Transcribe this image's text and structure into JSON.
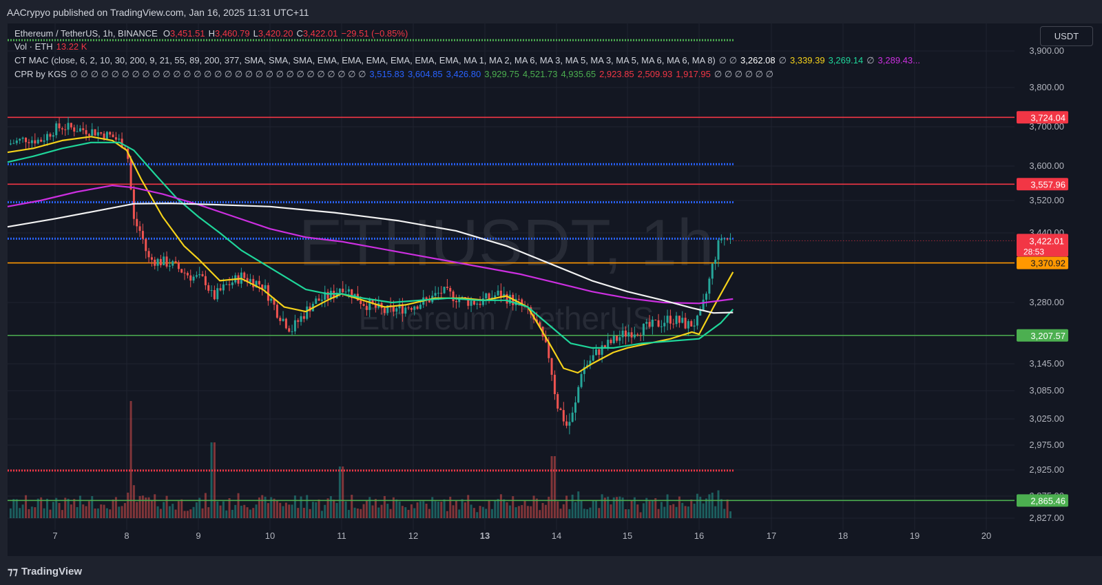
{
  "header": {
    "publisher": "AACrypyo published on TradingView.com, Jan 16, 2025 11:31 UTC+11"
  },
  "legend": {
    "main": {
      "symbol": "Ethereum / TetherUS, 1h, BINANCE",
      "o_label": "O",
      "o": "3,451.51",
      "h_label": "H",
      "h": "3,460.79",
      "l_label": "L",
      "l": "3,420.20",
      "c_label": "C",
      "c": "3,422.01",
      "change": "−29.51 (−0.85%)"
    },
    "vol": {
      "label": "Vol · ETH",
      "value": "13.22 K"
    },
    "mac": {
      "label": "CT MAC (close, 6, 2, 10, 30, 200, 9, 21, 55, 89, 200, 377, SMA, SMA, SMA, EMA, EMA, EMA, EMA, EMA, EMA, MA 1, MA 2, MA 6, MA 3, MA 5, MA 3, MA 5, MA 6, MA 6, MA 8)",
      "na": "∅ ∅",
      "v1": "3,262.08",
      "na2": "∅",
      "v2": "3,339.39",
      "v3": "3,269.14",
      "na3": "∅",
      "v4": "3,289.43..."
    },
    "cpr": {
      "label": "CPR by KGS",
      "na": "∅ ∅ ∅ ∅ ∅ ∅ ∅ ∅ ∅ ∅ ∅ ∅ ∅ ∅ ∅ ∅ ∅ ∅ ∅ ∅ ∅ ∅ ∅ ∅ ∅ ∅ ∅ ∅ ∅",
      "v1": "3,515.83",
      "v2": "3,604.85",
      "v3": "3,426.80",
      "v4": "3,929.75",
      "v5": "4,521.73",
      "v6": "4,935.65",
      "v7": "2,923.85",
      "v8": "2,509.93",
      "v9": "1,917.95",
      "na_end": "∅ ∅ ∅ ∅ ∅ ∅"
    }
  },
  "currency": "USDT",
  "watermark": {
    "symbol": "ETHUSDT, 1h",
    "name": "Ethereum / TetherUS"
  },
  "countdown": "28:53",
  "footer": {
    "logo": "TradingView"
  },
  "colors": {
    "bg": "#131722",
    "up": "#26a69a",
    "down": "#ef5350",
    "yellow": "#f5d21a",
    "teal": "#1fd69a",
    "magenta": "#cc2fe0",
    "white": "#f2f2f2",
    "red_level": "#f23645",
    "orange_level": "#ff9800",
    "green_level": "#4caf50",
    "blue_dotted": "#2962ff"
  },
  "chart_data": {
    "type": "candlestick",
    "timeframe": "1h",
    "price_axis": {
      "ticks": [
        3900,
        3800,
        3700,
        3600,
        3520,
        3440,
        3280,
        3145,
        3085,
        3025,
        2975,
        2925,
        2875,
        2827
      ],
      "tick_labels": [
        "3,900.00",
        "3,800.00",
        "3,700.00",
        "3,600.00",
        "3,520.00",
        "3,440.00",
        "3,280.00",
        "3,145.00",
        "3,085.00",
        "3,025.00",
        "2,975.00",
        "2,925.00",
        "2,875.00",
        "2,827.00"
      ]
    },
    "time_axis": {
      "ticks": [
        7,
        8,
        9,
        10,
        11,
        12,
        13,
        14,
        15,
        16,
        17,
        18,
        19,
        20
      ],
      "tick_labels": [
        "7",
        "8",
        "9",
        "10",
        "11",
        "12",
        "13",
        "14",
        "15",
        "16",
        "17",
        "18",
        "19",
        "20"
      ],
      "bold": [
        13
      ]
    },
    "price_anchors": [
      [
        3900,
        74
      ],
      [
        3800,
        127
      ],
      [
        3700,
        184
      ],
      [
        3600,
        241
      ],
      [
        3520,
        291
      ],
      [
        3440,
        338
      ],
      [
        3280,
        439
      ],
      [
        3145,
        528
      ],
      [
        3085,
        567
      ],
      [
        3025,
        608
      ],
      [
        2975,
        646
      ],
      [
        2925,
        682
      ],
      [
        2875,
        720
      ],
      [
        2827,
        752
      ]
    ],
    "day_anchors": [
      [
        6.35,
        11
      ],
      [
        7,
        80
      ],
      [
        8,
        184
      ],
      [
        9,
        288
      ],
      [
        10,
        392
      ],
      [
        11,
        496
      ],
      [
        12,
        600
      ],
      [
        13,
        704
      ],
      [
        14,
        808
      ],
      [
        15,
        911
      ],
      [
        16,
        1015
      ],
      [
        17,
        1120
      ],
      [
        18,
        1224
      ],
      [
        19,
        1328
      ],
      [
        20,
        1432
      ]
    ],
    "last_day": 16.47,
    "close_path": [
      [
        6.35,
        3655
      ],
      [
        6.6,
        3670
      ],
      [
        6.8,
        3665
      ],
      [
        7.0,
        3695
      ],
      [
        7.1,
        3700
      ],
      [
        7.5,
        3690
      ],
      [
        7.8,
        3675
      ],
      [
        8.0,
        3650
      ],
      [
        8.05,
        3560
      ],
      [
        8.1,
        3470
      ],
      [
        8.2,
        3440
      ],
      [
        8.3,
        3380
      ],
      [
        8.6,
        3370
      ],
      [
        8.9,
        3340
      ],
      [
        9.1,
        3330
      ],
      [
        9.2,
        3290
      ],
      [
        9.4,
        3320
      ],
      [
        9.6,
        3340
      ],
      [
        9.9,
        3320
      ],
      [
        10.1,
        3260
      ],
      [
        10.3,
        3220
      ],
      [
        10.6,
        3280
      ],
      [
        10.9,
        3300
      ],
      [
        11.0,
        3320
      ],
      [
        11.3,
        3280
      ],
      [
        11.6,
        3260
      ],
      [
        11.9,
        3270
      ],
      [
        12.2,
        3285
      ],
      [
        12.4,
        3305
      ],
      [
        12.7,
        3285
      ],
      [
        12.9,
        3280
      ],
      [
        13.2,
        3300
      ],
      [
        13.5,
        3275
      ],
      [
        13.7,
        3240
      ],
      [
        13.9,
        3160
      ],
      [
        14.0,
        3060
      ],
      [
        14.15,
        3010
      ],
      [
        14.25,
        3040
      ],
      [
        14.35,
        3130
      ],
      [
        14.6,
        3175
      ],
      [
        14.85,
        3200
      ],
      [
        15.0,
        3215
      ],
      [
        15.3,
        3225
      ],
      [
        15.6,
        3245
      ],
      [
        15.85,
        3230
      ],
      [
        16.0,
        3240
      ],
      [
        16.1,
        3300
      ],
      [
        16.2,
        3375
      ],
      [
        16.3,
        3430
      ],
      [
        16.47,
        3422
      ]
    ],
    "horizontal_levels": [
      {
        "price": 3724.04,
        "label": "3,724.04",
        "color": "#f23645",
        "style": "solid"
      },
      {
        "price": 3604.85,
        "color": "#2962ff",
        "style": "dotted"
      },
      {
        "price": 3557.96,
        "label": "3,557.96",
        "color": "#f23645",
        "style": "solid"
      },
      {
        "price": 3515.83,
        "color": "#2962ff",
        "style": "dotted"
      },
      {
        "price": 3426.8,
        "color": "#2962ff",
        "style": "dotted"
      },
      {
        "price": 3370.92,
        "label": "3,370.92",
        "color": "#ff9800",
        "style": "solid"
      },
      {
        "price": 3207.57,
        "label": "3,207.57",
        "color": "#4caf50",
        "style": "solid"
      },
      {
        "price": 2923.85,
        "color": "#f23645",
        "style": "dotted"
      },
      {
        "price": 2865.46,
        "label": "2,865.46",
        "color": "#4caf50",
        "style": "solid"
      },
      {
        "price": 3929.75,
        "color": "#4caf50",
        "style": "dotted"
      }
    ],
    "last_price": {
      "price": 3422.01,
      "label": "3,422.01"
    },
    "series": [
      {
        "name": "",
        "color": "#f5d21a",
        "points": [
          [
            6.35,
            3635
          ],
          [
            6.7,
            3645
          ],
          [
            7.1,
            3665
          ],
          [
            7.5,
            3675
          ],
          [
            7.8,
            3665
          ],
          [
            8.0,
            3640
          ],
          [
            8.2,
            3570
          ],
          [
            8.5,
            3480
          ],
          [
            8.8,
            3410
          ],
          [
            9.0,
            3380
          ],
          [
            9.3,
            3330
          ],
          [
            9.6,
            3335
          ],
          [
            9.9,
            3310
          ],
          [
            10.2,
            3270
          ],
          [
            10.5,
            3260
          ],
          [
            10.8,
            3285
          ],
          [
            11.0,
            3300
          ],
          [
            11.3,
            3285
          ],
          [
            11.6,
            3270
          ],
          [
            11.9,
            3275
          ],
          [
            12.3,
            3290
          ],
          [
            12.7,
            3290
          ],
          [
            13.0,
            3285
          ],
          [
            13.3,
            3295
          ],
          [
            13.6,
            3270
          ],
          [
            13.9,
            3190
          ],
          [
            14.1,
            3135
          ],
          [
            14.3,
            3125
          ],
          [
            14.5,
            3145
          ],
          [
            14.8,
            3170
          ],
          [
            15.0,
            3180
          ],
          [
            15.3,
            3190
          ],
          [
            15.6,
            3200
          ],
          [
            15.9,
            3215
          ],
          [
            16.0,
            3210
          ],
          [
            16.2,
            3270
          ],
          [
            16.47,
            3350
          ]
        ]
      },
      {
        "name": "",
        "color": "#1fd69a",
        "points": [
          [
            6.35,
            3610
          ],
          [
            6.7,
            3625
          ],
          [
            7.1,
            3645
          ],
          [
            7.5,
            3660
          ],
          [
            7.9,
            3660
          ],
          [
            8.1,
            3640
          ],
          [
            8.4,
            3580
          ],
          [
            8.7,
            3525
          ],
          [
            9.0,
            3480
          ],
          [
            9.3,
            3440
          ],
          [
            9.6,
            3400
          ],
          [
            9.9,
            3370
          ],
          [
            10.2,
            3340
          ],
          [
            10.5,
            3310
          ],
          [
            10.8,
            3300
          ],
          [
            11.0,
            3300
          ],
          [
            11.3,
            3290
          ],
          [
            11.7,
            3280
          ],
          [
            12.1,
            3285
          ],
          [
            12.5,
            3290
          ],
          [
            12.9,
            3285
          ],
          [
            13.3,
            3285
          ],
          [
            13.6,
            3270
          ],
          [
            13.9,
            3230
          ],
          [
            14.2,
            3190
          ],
          [
            14.5,
            3180
          ],
          [
            14.8,
            3180
          ],
          [
            15.2,
            3190
          ],
          [
            15.6,
            3195
          ],
          [
            16.0,
            3200
          ],
          [
            16.3,
            3235
          ],
          [
            16.47,
            3265
          ]
        ]
      },
      {
        "name": "",
        "color": "#cc2fe0",
        "points": [
          [
            6.35,
            3505
          ],
          [
            6.8,
            3520
          ],
          [
            7.3,
            3540
          ],
          [
            7.8,
            3555
          ],
          [
            8.1,
            3550
          ],
          [
            8.5,
            3535
          ],
          [
            9.0,
            3510
          ],
          [
            9.5,
            3480
          ],
          [
            10.0,
            3450
          ],
          [
            10.5,
            3430
          ],
          [
            11.0,
            3420
          ],
          [
            11.5,
            3405
          ],
          [
            12.0,
            3390
          ],
          [
            12.5,
            3375
          ],
          [
            13.0,
            3360
          ],
          [
            13.5,
            3345
          ],
          [
            14.0,
            3325
          ],
          [
            14.5,
            3305
          ],
          [
            15.0,
            3290
          ],
          [
            15.5,
            3280
          ],
          [
            16.0,
            3278
          ],
          [
            16.47,
            3288
          ]
        ]
      },
      {
        "name": "",
        "color": "#f2f2f2",
        "points": [
          [
            6.35,
            3455
          ],
          [
            7.0,
            3475
          ],
          [
            7.6,
            3495
          ],
          [
            8.1,
            3512
          ],
          [
            8.6,
            3513
          ],
          [
            9.2,
            3510
          ],
          [
            10.0,
            3505
          ],
          [
            10.9,
            3490
          ],
          [
            11.8,
            3470
          ],
          [
            12.6,
            3445
          ],
          [
            13.3,
            3410
          ],
          [
            13.9,
            3370
          ],
          [
            14.5,
            3330
          ],
          [
            15.0,
            3305
          ],
          [
            15.5,
            3285
          ],
          [
            15.9,
            3268
          ],
          [
            16.2,
            3257
          ],
          [
            16.47,
            3258
          ]
        ]
      }
    ]
  }
}
